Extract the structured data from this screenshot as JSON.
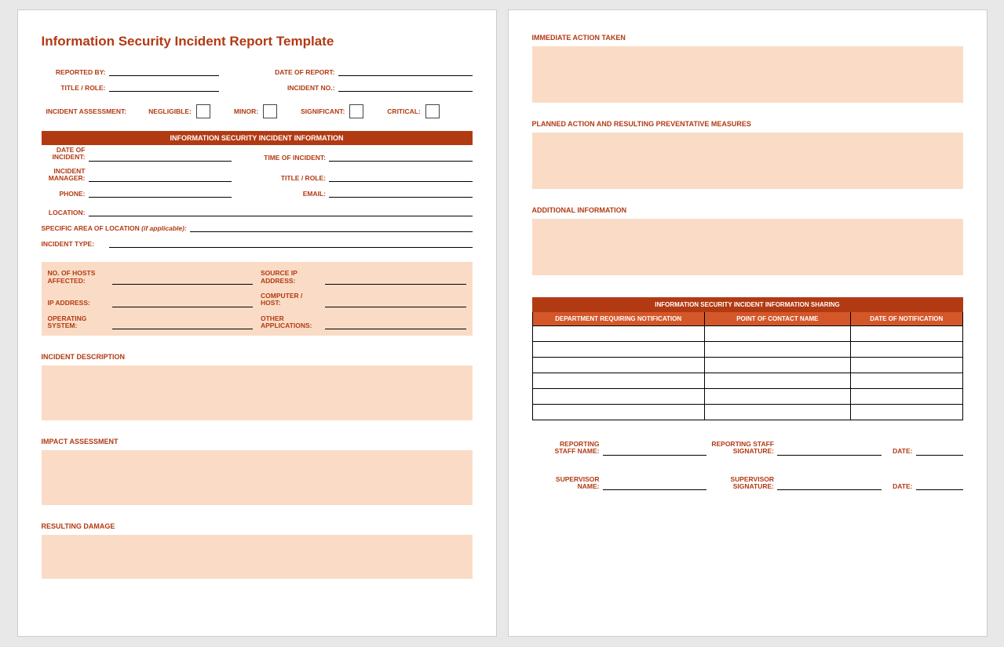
{
  "colors": {
    "accent": "#b23a13",
    "accent_light": "#d4572a",
    "peach": "#fadcc6",
    "page_bg": "#ffffff",
    "body_bg": "#e8e8e8",
    "border": "#000000"
  },
  "page1": {
    "title": "Information Security Incident Report Template",
    "top_fields": {
      "reported_by": "REPORTED BY:",
      "date_of_report": "DATE OF REPORT:",
      "title_role": "TITLE / ROLE:",
      "incident_no": "INCIDENT NO.:"
    },
    "assessment": {
      "label": "INCIDENT ASSESSMENT:",
      "options": [
        "NEGLIGIBLE:",
        "MINOR:",
        "SIGNIFICANT:",
        "CRITICAL:"
      ]
    },
    "info_banner": "INFORMATION SECURITY INCIDENT INFORMATION",
    "info_fields": {
      "date_of_incident": "DATE OF\nINCIDENT:",
      "time_of_incident": "TIME OF INCIDENT:",
      "incident_manager": "INCIDENT\nMANAGER:",
      "title_role": "TITLE / ROLE:",
      "phone": "PHONE:",
      "email": "EMAIL:",
      "location": "LOCATION:",
      "specific_area": "SPECIFIC AREA OF LOCATION",
      "specific_area_suffix": "(if applicable):",
      "incident_type": "INCIDENT TYPE:"
    },
    "tech_fields": {
      "hosts_affected": "NO. OF HOSTS\nAFFECTED:",
      "source_ip": "SOURCE IP\nADDRESS:",
      "ip_address": "IP ADDRESS:",
      "computer_host": "COMPUTER /\nHOST:",
      "operating_system": "OPERATING\nSYSTEM:",
      "other_apps": "OTHER\nAPPLICATIONS:"
    },
    "sections": {
      "incident_description": "INCIDENT DESCRIPTION",
      "impact_assessment": "IMPACT ASSESSMENT",
      "resulting_damage": "RESULTING DAMAGE"
    }
  },
  "page2": {
    "sections": {
      "immediate_action": "IMMEDIATE ACTION TAKEN",
      "planned_action": "PLANNED ACTION AND RESULTING PREVENTATIVE MEASURES",
      "additional_info": "ADDITIONAL INFORMATION"
    },
    "sharing_banner": "INFORMATION SECURITY INCIDENT INFORMATION SHARING",
    "sharing_columns": [
      "DEPARTMENT REQUIRING NOTIFICATION",
      "POINT OF CONTACT NAME",
      "DATE OF NOTIFICATION"
    ],
    "sharing_row_count": 6,
    "signatures": {
      "reporting_name": "REPORTING\nSTAFF NAME:",
      "reporting_sig": "REPORTING STAFF\nSIGNATURE:",
      "supervisor_name": "SUPERVISOR\nNAME:",
      "supervisor_sig": "SUPERVISOR\nSIGNATURE:",
      "date": "DATE:"
    }
  }
}
